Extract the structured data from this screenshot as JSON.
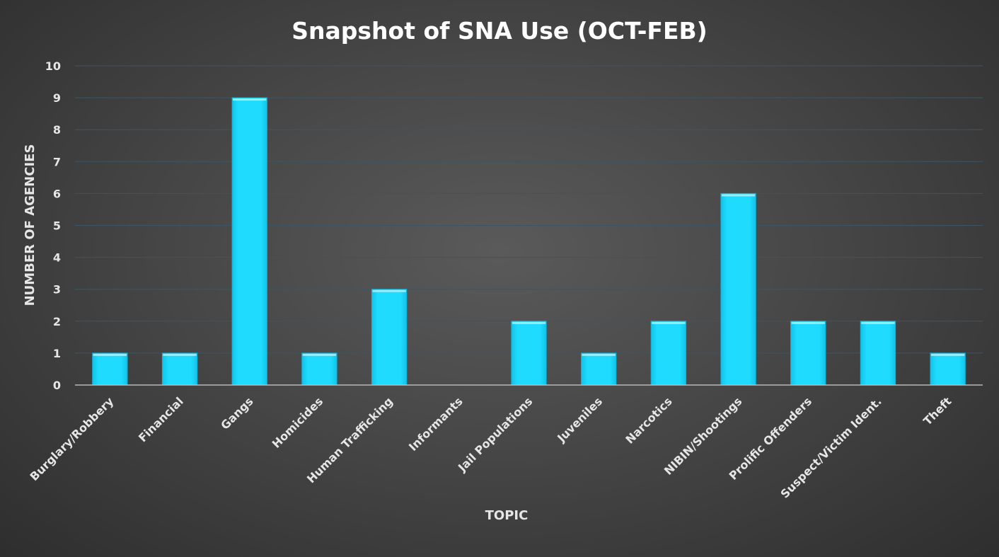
{
  "chart_data": {
    "type": "bar",
    "title": "Snapshot of SNA Use (OCT-FEB)",
    "xlabel": "TOPIC",
    "ylabel": "NUMBER OF AGENCIES",
    "categories": [
      "Burglary/Robbery",
      "Financial",
      "Gangs",
      "Homicides",
      "Human Trafficking",
      "Informants",
      "Jail Populations",
      "Juveniles",
      "Narcotics",
      "NIBIN/Shootings",
      "Prolific Offenders",
      "Suspect/Victim Ident.",
      "Theft"
    ],
    "values": [
      1,
      1,
      9,
      1,
      3,
      0,
      2,
      1,
      2,
      6,
      2,
      2,
      1
    ],
    "ylim": [
      0,
      10
    ],
    "yticks": [
      "0",
      "1",
      "2",
      "3",
      "4",
      "5",
      "6",
      "7",
      "8",
      "9",
      "10"
    ],
    "grid": true,
    "legend": "none",
    "colors": {
      "bar": "#1fdcff",
      "bar_edge": "#0fb2d6",
      "gridline": "#3d5563",
      "text": "#e6e6e6",
      "title": "#ffffff"
    }
  }
}
